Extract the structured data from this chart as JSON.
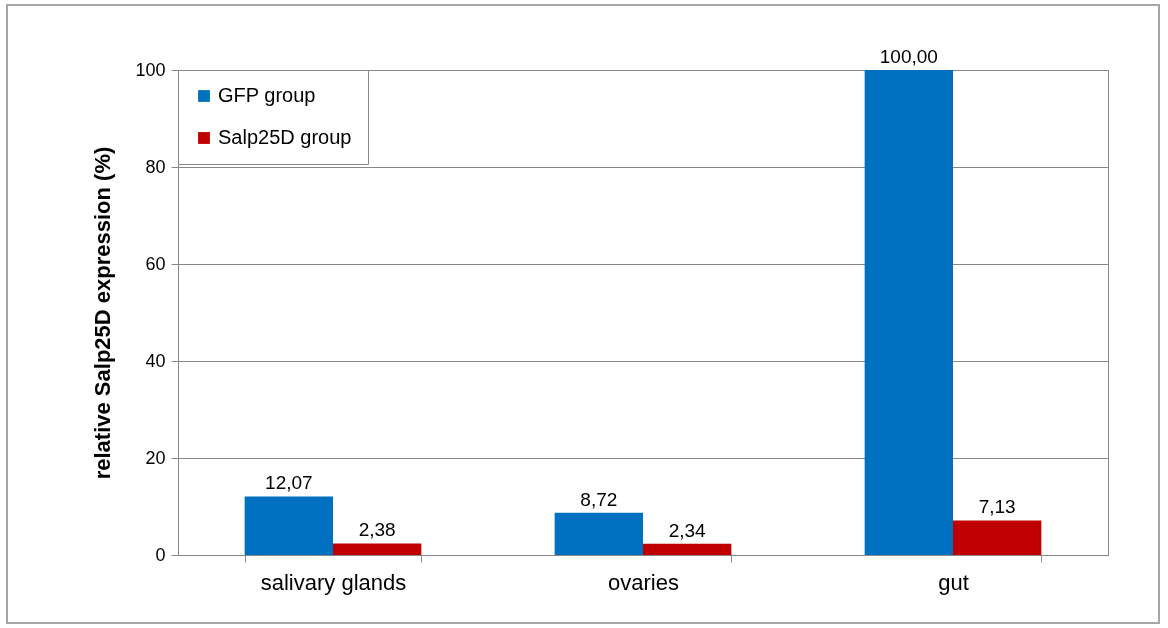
{
  "chart_data": {
    "type": "bar",
    "ylabel": "relative Salp25D  expression (%)",
    "categories": [
      "salivary glands",
      "ovaries",
      "gut"
    ],
    "series": [
      {
        "name": "GFP group",
        "color": "#0070c0",
        "values": [
          12.07,
          8.72,
          100.0
        ],
        "value_labels": [
          "12,07",
          "8,72",
          "100,00"
        ]
      },
      {
        "name": "Salp25D group",
        "color": "#c00000",
        "values": [
          2.38,
          2.34,
          7.13
        ],
        "value_labels": [
          "2,38",
          "2,34",
          "7,13"
        ]
      }
    ],
    "ylim": [
      0,
      100
    ],
    "yticks": [
      0,
      20,
      40,
      60,
      80,
      100
    ],
    "grid": "y",
    "legend": "top left"
  }
}
